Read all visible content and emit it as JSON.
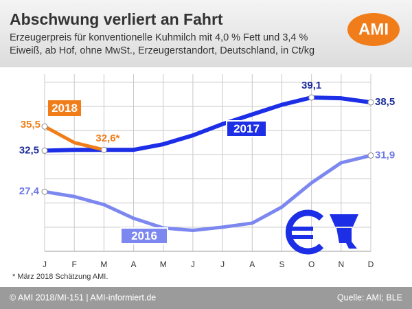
{
  "chart_data": {
    "type": "line",
    "title": "Abschwung verliert an Fahrt",
    "subtitle": "Erzeugerpreis für konventionelle Kuhmilch mit 4,0 % Fett und 3,4 % Eiweiß, ab Hof, ohne MwSt., Erzeugerstandort, Deutschland, in Ct/kg",
    "logo": "AMI",
    "categories": [
      "J",
      "F",
      "M",
      "A",
      "M",
      "J",
      "J",
      "A",
      "S",
      "O",
      "N",
      "D"
    ],
    "series": [
      {
        "name": "2018",
        "color": "#f07d1a",
        "values": [
          35.5,
          33.5,
          32.6,
          null,
          null,
          null,
          null,
          null,
          null,
          null,
          null,
          null
        ],
        "value_labels": [
          "35,5",
          null,
          "32,6*",
          null,
          null,
          null,
          null,
          null,
          null,
          null,
          null,
          null
        ]
      },
      {
        "name": "2017",
        "color": "#1c2ee6",
        "values": [
          32.5,
          32.6,
          32.6,
          32.6,
          33.3,
          34.4,
          35.8,
          37.0,
          38.2,
          39.1,
          39.0,
          38.5
        ],
        "value_labels": [
          "32,5",
          null,
          null,
          null,
          null,
          null,
          null,
          null,
          null,
          "39,1",
          null,
          "38,5"
        ]
      },
      {
        "name": "2016",
        "color": "#7c88f0",
        "values": [
          27.4,
          26.8,
          25.8,
          24.1,
          22.9,
          22.6,
          23.0,
          23.5,
          25.5,
          28.5,
          31.0,
          31.9
        ],
        "value_labels": [
          "27,4",
          null,
          null,
          null,
          null,
          null,
          null,
          null,
          null,
          null,
          null,
          "31,9"
        ]
      }
    ],
    "ylim": [
      20,
      42
    ],
    "yticks": [
      23,
      26,
      29,
      32,
      35,
      38,
      41
    ],
    "grid": true,
    "footnote": "* März 2018 Schätzung AMI.",
    "footer_left": "© AMI 2018/MI-151 | AMI-informiert.de",
    "footer_right": "Quelle: AMI; BLE"
  }
}
